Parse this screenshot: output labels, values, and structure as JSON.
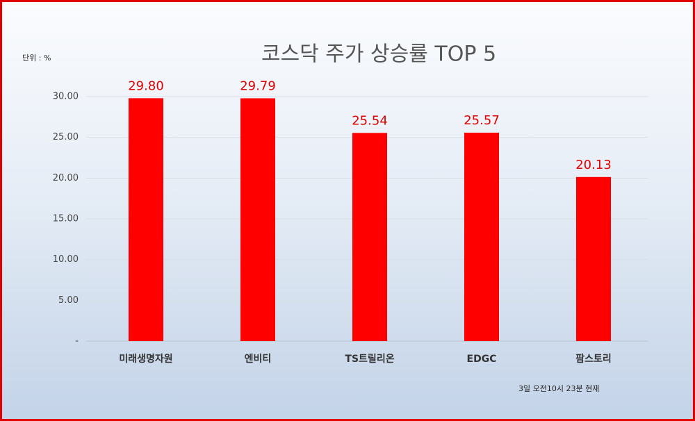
{
  "chart_data": {
    "type": "bar",
    "title": "코스닥 주가 상승률 TOP 5",
    "y_unit_label": "단위 : %",
    "note": "3일 오전10시 23분 현재",
    "categories": [
      "미래생명자원",
      "엔비티",
      "TS트릴리온",
      "EDGC",
      "팜스토리"
    ],
    "values": [
      29.8,
      29.79,
      25.54,
      25.57,
      20.13
    ],
    "value_labels": [
      "29.80",
      "29.79",
      "25.54",
      "25.57",
      "20.13"
    ],
    "color": "#ff0000",
    "ylim": [
      0,
      30
    ],
    "yticks": [
      {
        "value": 0,
        "label": "-"
      },
      {
        "value": 5,
        "label": "5.00"
      },
      {
        "value": 10,
        "label": "10.00"
      },
      {
        "value": 15,
        "label": "15.00"
      },
      {
        "value": 20,
        "label": "20.00"
      },
      {
        "value": 25,
        "label": "25.00"
      },
      {
        "value": 30,
        "label": "30.00"
      }
    ],
    "grid": true
  }
}
